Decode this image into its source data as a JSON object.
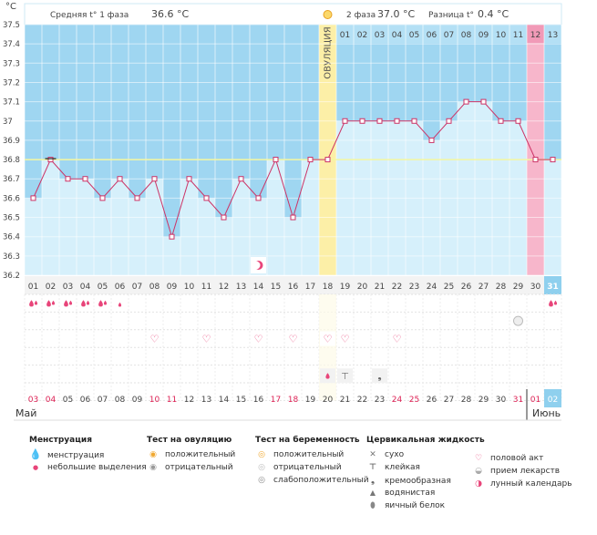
{
  "chart_data": {
    "type": "line",
    "y_unit": "°C",
    "ylim": [
      36.2,
      37.5
    ],
    "y_ticks": [
      "37.5",
      "37.4",
      "37.3",
      "37.2",
      "37.1",
      "37",
      "36.9",
      "36.8",
      "36.7",
      "36.6",
      "36.5",
      "36.4",
      "36.3",
      "36.2"
    ],
    "cycle_days": [
      "01",
      "02",
      "03",
      "04",
      "05",
      "06",
      "07",
      "08",
      "09",
      "10",
      "11",
      "12",
      "13",
      "14",
      "15",
      "16",
      "17",
      "18",
      "19",
      "20",
      "21",
      "22",
      "23",
      "24",
      "25",
      "26",
      "27",
      "28",
      "29",
      "30",
      "31"
    ],
    "second_phase_days": [
      "01",
      "02",
      "03",
      "04",
      "05",
      "06",
      "07",
      "08",
      "09",
      "10",
      "11",
      "12",
      "13"
    ],
    "dates": [
      "03",
      "04",
      "05",
      "06",
      "07",
      "08",
      "09",
      "10",
      "11",
      "12",
      "13",
      "14",
      "15",
      "16",
      "17",
      "18",
      "19",
      "20",
      "21",
      "22",
      "23",
      "24",
      "25",
      "26",
      "27",
      "28",
      "29",
      "30",
      "31",
      "01",
      "02"
    ],
    "date_red_indices": [
      0,
      1,
      7,
      8,
      14,
      15,
      21,
      22,
      28,
      29
    ],
    "months": {
      "start": "Май",
      "end": "Июнь"
    },
    "temperatures": [
      36.6,
      36.8,
      36.7,
      36.7,
      36.6,
      36.7,
      36.6,
      36.7,
      36.4,
      36.7,
      36.6,
      36.5,
      36.7,
      36.6,
      36.8,
      36.5,
      36.8,
      36.8,
      37.0,
      37.0,
      37.0,
      37.0,
      37.0,
      36.9,
      37.0,
      37.1,
      37.1,
      37.0,
      37.0,
      36.8,
      36.8
    ],
    "coverline": 36.8,
    "ovulation_day_index": 17,
    "ovulation_label": "ОВУЛЯЦИЯ",
    "pink_day_index": 29,
    "current_day_index": 30,
    "phase1_label": "Средняя t° 1 фаза",
    "phase1_value": "36.6 °C",
    "phase2_label": "2 фаза",
    "phase2_value": "37.0 °C",
    "diff_label": "Разница t°",
    "diff_value": "0.4 °C",
    "moon_day_index": 13,
    "menstruation_heavy": [
      0,
      1,
      2,
      3,
      4
    ],
    "menstruation_light": [
      5
    ],
    "menstruation_heavy_next": [
      30
    ],
    "medication_day_index": 28,
    "intercourse_days": [
      7,
      10,
      13,
      15,
      17,
      18,
      21
    ],
    "cervical": [
      {
        "day": 17,
        "type": "watery"
      },
      {
        "day": 18,
        "type": "sticky"
      },
      {
        "day": 20,
        "type": "creamy"
      }
    ]
  },
  "legend": {
    "menstruation": {
      "title": "Менструация",
      "items": [
        "менструация",
        "небольшие выделения"
      ]
    },
    "ovulation_test": {
      "title": "Тест на овуляцию",
      "items": [
        "положительный",
        "отрицательный"
      ]
    },
    "pregnancy_test": {
      "title": "Тест на беременность",
      "items": [
        "положительный",
        "отрицательный",
        "слабоположительный"
      ]
    },
    "cervical": {
      "title": "Цервикальная жидкость",
      "items": [
        "сухо",
        "клейкая",
        "кремообразная",
        "водянистая",
        "яичный белок"
      ]
    },
    "other": {
      "items": [
        "половой акт",
        "прием лекарств",
        "лунный календарь"
      ]
    }
  },
  "icons": {
    "drop": "drop-icon",
    "heart": "heart-icon",
    "moon": "moon-icon",
    "sun": "sun-icon"
  },
  "colors": {
    "sky": "#9fd6f1",
    "bar": "#d6f0fb",
    "line": "#cc3366",
    "ovulation": "#fcefa7",
    "pink": "#f7b6cb",
    "current": "#8fd0ee",
    "red_text": "#dd2255",
    "drop": "#e8457a"
  }
}
